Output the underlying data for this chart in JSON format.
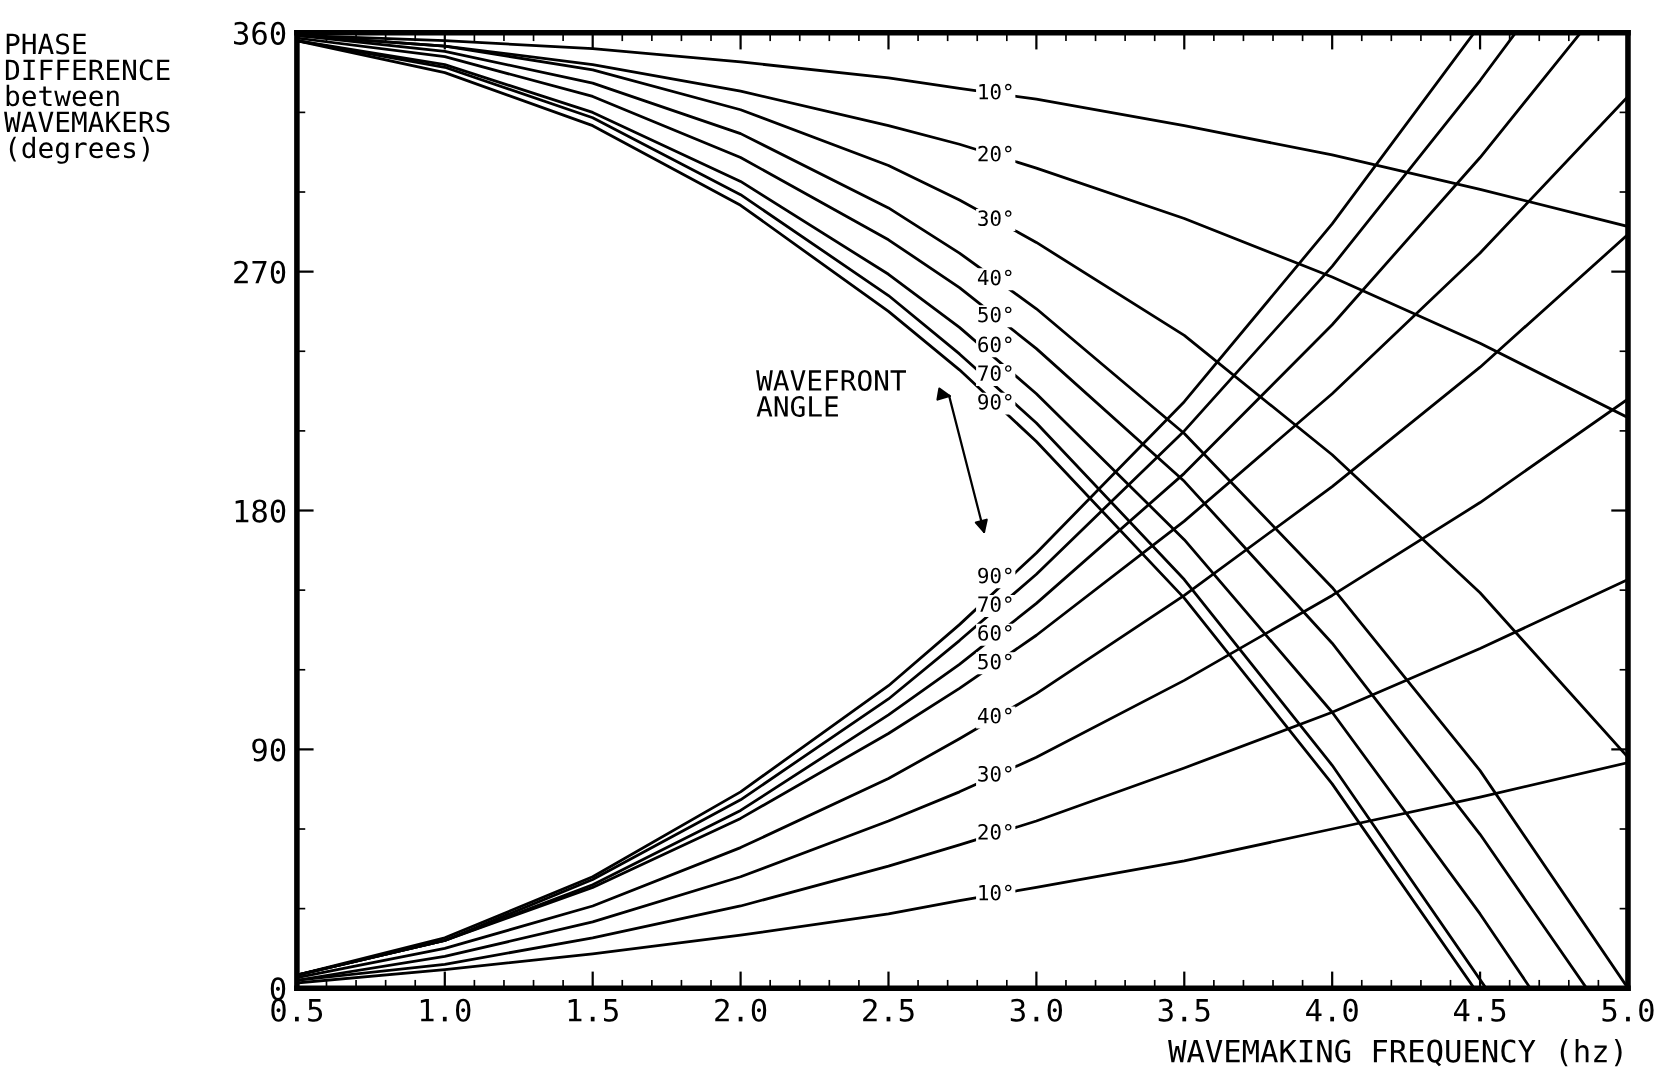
{
  "chart_data": {
    "type": "line",
    "xlabel": "WAVEMAKING FREQUENCY (hz)",
    "ylabel": "PHASE\nDIFFERENCE\nbetween\nWAVEMAKERS\n(degrees)",
    "annotations": [
      "WAVEFRONT\nANGLE"
    ],
    "xlim": [
      0.5,
      5.0
    ],
    "ylim": [
      0,
      360
    ],
    "xticks": [
      {
        "value": 0.5,
        "label": "0.5"
      },
      {
        "value": 1,
        "label": "1.0"
      },
      {
        "value": 1.5,
        "label": "1.5"
      },
      {
        "value": 2,
        "label": "2.0"
      },
      {
        "value": 2.5,
        "label": "2.5"
      },
      {
        "value": 3,
        "label": "3.0"
      },
      {
        "value": 3.5,
        "label": "3.5"
      },
      {
        "value": 4,
        "label": "4.0"
      },
      {
        "value": 4.5,
        "label": "4.5"
      },
      {
        "value": 5,
        "label": "5.0"
      }
    ],
    "yticks": [
      0,
      90,
      180,
      270,
      360
    ],
    "grid": false,
    "legend": false,
    "marker": "none",
    "line_style": "solid",
    "x": [
      0.5,
      1.0,
      1.5,
      2.0,
      2.5,
      2.74,
      3.0,
      3.5,
      4.0,
      4.5,
      5.0
    ],
    "series": [
      {
        "name": "10°",
        "color": "#000000",
        "values": [
          2,
          7,
          13,
          20,
          28,
          33,
          38,
          48,
          60,
          72,
          85
        ]
      },
      {
        "name": "20°",
        "color": "#000000",
        "values": [
          3,
          9,
          19,
          31,
          46,
          54,
          63,
          83,
          104,
          128,
          154
        ]
      },
      {
        "name": "30°",
        "color": "#000000",
        "values": [
          3,
          12,
          25,
          42,
          63,
          74,
          87,
          116,
          148,
          183,
          222
        ]
      },
      {
        "name": "40°",
        "color": "#000000",
        "values": [
          4,
          15,
          31,
          53,
          79,
          94,
          111,
          148,
          189,
          234,
          284
        ]
      },
      {
        "name": "50°",
        "color": "#000000",
        "values": [
          5,
          18,
          38,
          64,
          96,
          113,
          133,
          176,
          224,
          277,
          336
        ]
      },
      {
        "name": "60°",
        "color": "#000000",
        "x": [
          0.5,
          1.0,
          1.5,
          2.0,
          2.5,
          2.74,
          3.0,
          3.5,
          4.0,
          4.5,
          4.84
        ],
        "values": [
          5,
          18,
          39,
          67,
          103,
          122,
          145,
          194,
          250,
          313,
          360
        ]
      },
      {
        "name": "70°",
        "color": "#000000",
        "x": [
          0.5,
          1.0,
          1.5,
          2.0,
          2.5,
          2.74,
          3.0,
          3.5,
          4.0,
          4.5,
          4.62
        ],
        "values": [
          5,
          18,
          41,
          71,
          109,
          131,
          156,
          210,
          272,
          342,
          360
        ]
      },
      {
        "name": "90°",
        "color": "#000000",
        "x": [
          0.5,
          1.0,
          1.5,
          2.0,
          2.5,
          2.74,
          3.0,
          3.5,
          4.0,
          4.48
        ],
        "values": [
          5,
          19,
          42,
          74,
          114,
          137,
          164,
          221,
          288,
          360
        ]
      },
      {
        "name": "10°",
        "color": "#000000",
        "values": [
          359,
          357,
          354,
          349,
          343,
          339,
          335,
          325,
          314,
          301,
          287
        ]
      },
      {
        "name": "20°",
        "color": "#000000",
        "values": [
          359,
          355,
          348,
          338,
          325,
          318,
          309,
          290,
          268,
          243,
          215
        ]
      },
      {
        "name": "30°",
        "color": "#000000",
        "values": [
          359,
          355,
          346,
          331,
          310,
          297,
          281,
          246,
          201,
          149,
          87
        ]
      },
      {
        "name": "40°",
        "color": "#000000",
        "x": [
          0.5,
          1.0,
          1.5,
          2.0,
          2.5,
          2.74,
          3.0,
          3.5,
          4.0,
          4.5,
          5.0
        ],
        "values": [
          359,
          353,
          341,
          322,
          294,
          277,
          256,
          209,
          151,
          82,
          0
        ]
      },
      {
        "name": "50°",
        "color": "#000000",
        "x": [
          0.5,
          1.0,
          1.5,
          2.0,
          2.5,
          2.74,
          3.0,
          3.5,
          4.0,
          4.5,
          4.86
        ],
        "values": [
          358,
          351,
          336,
          313,
          282,
          264,
          241,
          191,
          130,
          58,
          0
        ]
      },
      {
        "name": "60°",
        "color": "#000000",
        "x": [
          0.5,
          1.0,
          1.5,
          2.0,
          2.5,
          2.74,
          3.0,
          3.5,
          4.0,
          4.5,
          4.67
        ],
        "values": [
          357,
          348,
          330,
          304,
          269,
          249,
          224,
          169,
          104,
          28,
          0
        ]
      },
      {
        "name": "70°",
        "color": "#000000",
        "x": [
          0.5,
          1.0,
          1.5,
          2.0,
          2.5,
          2.74,
          3.0,
          3.5,
          4.0,
          4.52
        ],
        "values": [
          357,
          347,
          328,
          299,
          261,
          239,
          213,
          154,
          84,
          0
        ]
      },
      {
        "name": "90°",
        "color": "#000000",
        "x": [
          0.5,
          1.0,
          1.5,
          2.0,
          2.5,
          2.74,
          3.0,
          3.5,
          4.0,
          4.48
        ],
        "values": [
          357,
          345,
          325,
          295,
          255,
          233,
          206,
          147,
          77,
          0
        ]
      }
    ]
  }
}
